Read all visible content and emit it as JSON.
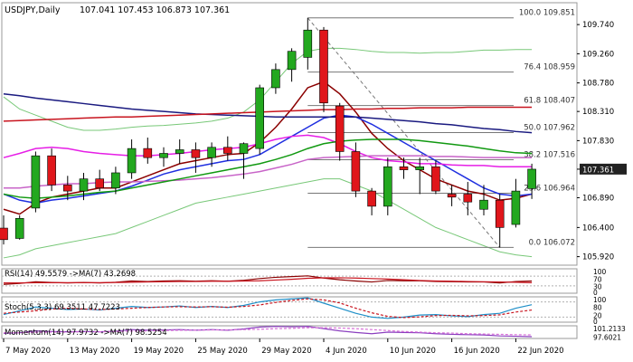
{
  "header": {
    "symbol_text": "USDJPY,Daily",
    "ohlc_text": "107.041 107.453 106.873 107.361"
  },
  "colors": {
    "bull": "#23a81f",
    "bear": "#e0161b",
    "wick": "#000000",
    "dark_red_ma": "#8b0000",
    "blue_ma": "#1f2fe0",
    "navy_ma": "#1a1a80",
    "red_ma": "#c8141e",
    "magenta_ma": "#e61ee6",
    "violet_ma": "#c864c8",
    "green_ma": "#119911",
    "bollinger": "#78c878",
    "fib_line": "#777777",
    "price_box": "#222222"
  },
  "chart_data": [
    {
      "type": "candlestick",
      "title": "USDJPY,Daily",
      "ylim": [
        105.78,
        110.1
      ],
      "y_ticks": [
        105.92,
        106.4,
        106.89,
        107.36,
        107.83,
        108.31,
        108.78,
        109.26,
        109.74
      ],
      "y_tick_labels": [
        "105.920",
        "106.400",
        "106.890",
        "107.361",
        "107.830",
        "108.310",
        "108.780",
        "109.260",
        "109.740"
      ],
      "current_price": 107.361,
      "current_price_label": "107.361",
      "x_tick_labels": [
        {
          "index": 0,
          "label": "7 May 2020"
        },
        {
          "index": 4,
          "label": "13 May 2020"
        },
        {
          "index": 8,
          "label": "19 May 2020"
        },
        {
          "index": 12,
          "label": "25 May 2020"
        },
        {
          "index": 16,
          "label": "29 May 2020"
        },
        {
          "index": 20,
          "label": "4 Jun 2020"
        },
        {
          "index": 24,
          "label": "10 Jun 2020"
        },
        {
          "index": 28,
          "label": "16 Jun 2020"
        },
        {
          "index": 32,
          "label": "22 Jun 2020"
        }
      ],
      "candles": [
        {
          "o": 106.39,
          "h": 106.6,
          "l": 106.12,
          "c": 106.2
        },
        {
          "o": 106.22,
          "h": 106.6,
          "l": 106.2,
          "c": 106.55
        },
        {
          "o": 106.72,
          "h": 107.65,
          "l": 106.65,
          "c": 107.58
        },
        {
          "o": 107.58,
          "h": 107.7,
          "l": 107.0,
          "c": 107.1
        },
        {
          "o": 107.1,
          "h": 107.25,
          "l": 106.85,
          "c": 107.0
        },
        {
          "o": 107.0,
          "h": 107.3,
          "l": 106.85,
          "c": 107.2
        },
        {
          "o": 107.2,
          "h": 107.35,
          "l": 107.0,
          "c": 107.05
        },
        {
          "o": 107.05,
          "h": 107.4,
          "l": 106.95,
          "c": 107.3
        },
        {
          "o": 107.3,
          "h": 107.85,
          "l": 107.2,
          "c": 107.7
        },
        {
          "o": 107.7,
          "h": 107.88,
          "l": 107.45,
          "c": 107.55
        },
        {
          "o": 107.55,
          "h": 107.72,
          "l": 107.4,
          "c": 107.62
        },
        {
          "o": 107.62,
          "h": 107.85,
          "l": 107.45,
          "c": 107.68
        },
        {
          "o": 107.68,
          "h": 107.8,
          "l": 107.3,
          "c": 107.55
        },
        {
          "o": 107.55,
          "h": 107.8,
          "l": 107.4,
          "c": 107.72
        },
        {
          "o": 107.72,
          "h": 107.9,
          "l": 107.5,
          "c": 107.62
        },
        {
          "o": 107.62,
          "h": 107.8,
          "l": 107.2,
          "c": 107.78
        },
        {
          "o": 107.7,
          "h": 108.75,
          "l": 107.6,
          "c": 108.7
        },
        {
          "o": 108.7,
          "h": 109.1,
          "l": 108.6,
          "c": 109.0
        },
        {
          "o": 109.0,
          "h": 109.35,
          "l": 108.8,
          "c": 109.3
        },
        {
          "o": 109.2,
          "h": 109.85,
          "l": 109.0,
          "c": 109.65
        },
        {
          "o": 109.65,
          "h": 109.7,
          "l": 108.3,
          "c": 108.45
        },
        {
          "o": 108.4,
          "h": 108.45,
          "l": 107.5,
          "c": 107.65
        },
        {
          "o": 107.65,
          "h": 107.8,
          "l": 106.9,
          "c": 107.0
        },
        {
          "o": 107.0,
          "h": 107.05,
          "l": 106.6,
          "c": 106.75
        },
        {
          "o": 106.75,
          "h": 107.55,
          "l": 106.6,
          "c": 107.4
        },
        {
          "o": 107.4,
          "h": 107.55,
          "l": 107.2,
          "c": 107.35
        },
        {
          "o": 107.35,
          "h": 107.55,
          "l": 106.95,
          "c": 107.4
        },
        {
          "o": 107.4,
          "h": 107.5,
          "l": 106.95,
          "c": 107.0
        },
        {
          "o": 106.95,
          "h": 107.1,
          "l": 106.75,
          "c": 106.9
        },
        {
          "o": 106.95,
          "h": 107.15,
          "l": 106.6,
          "c": 106.82
        },
        {
          "o": 106.7,
          "h": 107.1,
          "l": 106.6,
          "c": 106.85
        },
        {
          "o": 106.85,
          "h": 106.95,
          "l": 106.07,
          "c": 106.4
        },
        {
          "o": 106.45,
          "h": 107.2,
          "l": 106.4,
          "c": 107.0
        },
        {
          "o": 107.04,
          "h": 107.45,
          "l": 106.87,
          "c": 107.36
        }
      ],
      "fibonacci": [
        {
          "price": 109.851,
          "label": "100.0 109.851"
        },
        {
          "price": 108.959,
          "label": "76.4 108.959"
        },
        {
          "price": 108.407,
          "label": "61.8 108.407"
        },
        {
          "price": 107.962,
          "label": "50.0 107.962"
        },
        {
          "price": 107.516,
          "label": "38.2 107.516"
        },
        {
          "price": 106.964,
          "label": "23.6 106.964"
        },
        {
          "price": 106.072,
          "label": "0.0 106.072"
        }
      ],
      "fib_anchor": {
        "from_index": 19,
        "to_index": 31
      },
      "moving_averages": [
        {
          "key": "dark_red_ma",
          "values": [
            106.7,
            106.62,
            106.8,
            106.9,
            106.95,
            107.0,
            107.05,
            107.05,
            107.15,
            107.25,
            107.35,
            107.45,
            107.5,
            107.55,
            107.6,
            107.62,
            107.8,
            108.05,
            108.35,
            108.7,
            108.8,
            108.6,
            108.3,
            107.95,
            107.7,
            107.5,
            107.35,
            107.2,
            107.1,
            107.0,
            106.95,
            106.85,
            106.88,
            106.95
          ]
        },
        {
          "key": "blue_ma",
          "values": [
            106.95,
            106.85,
            106.8,
            106.85,
            106.88,
            106.92,
            106.96,
            107.0,
            107.08,
            107.18,
            107.28,
            107.35,
            107.4,
            107.45,
            107.5,
            107.52,
            107.6,
            107.75,
            107.9,
            108.05,
            108.2,
            108.25,
            108.22,
            108.1,
            107.95,
            107.8,
            107.65,
            107.5,
            107.35,
            107.2,
            107.05,
            106.95,
            106.92,
            106.95
          ]
        },
        {
          "key": "magenta_ma",
          "values": [
            107.55,
            107.62,
            107.7,
            107.72,
            107.7,
            107.65,
            107.62,
            107.6,
            107.58,
            107.58,
            107.6,
            107.62,
            107.65,
            107.68,
            107.7,
            107.72,
            107.78,
            107.85,
            107.9,
            107.92,
            107.88,
            107.78,
            107.65,
            107.55,
            107.5,
            107.48,
            107.45,
            107.45,
            107.43,
            107.42,
            107.42,
            107.4,
            107.4,
            107.4
          ]
        },
        {
          "key": "violet_ma",
          "values": [
            107.05,
            107.05,
            107.08,
            107.1,
            107.12,
            107.12,
            107.14,
            107.15,
            107.15,
            107.16,
            107.17,
            107.18,
            107.2,
            107.22,
            107.25,
            107.28,
            107.32,
            107.38,
            107.44,
            107.52,
            107.55,
            107.56,
            107.57,
            107.58,
            107.58,
            107.58,
            107.58,
            107.57,
            107.57,
            107.56,
            107.55,
            107.55,
            107.55,
            107.55
          ]
        },
        {
          "key": "green_ma",
          "values": [
            106.95,
            106.9,
            106.88,
            106.9,
            106.92,
            106.95,
            106.98,
            107.0,
            107.05,
            107.1,
            107.15,
            107.2,
            107.25,
            107.3,
            107.35,
            107.4,
            107.45,
            107.52,
            107.6,
            107.7,
            107.78,
            107.82,
            107.84,
            107.85,
            107.85,
            107.85,
            107.83,
            107.8,
            107.77,
            107.74,
            107.7,
            107.66,
            107.63,
            107.62
          ]
        },
        {
          "key": "navy_ma",
          "values": [
            108.6,
            108.57,
            108.53,
            108.5,
            108.47,
            108.44,
            108.41,
            108.38,
            108.35,
            108.33,
            108.31,
            108.29,
            108.27,
            108.26,
            108.25,
            108.24,
            108.23,
            108.22,
            108.22,
            108.22,
            108.22,
            108.22,
            108.22,
            108.2,
            108.18,
            108.16,
            108.14,
            108.11,
            108.09,
            108.06,
            108.03,
            108.01,
            107.98,
            107.96
          ]
        },
        {
          "key": "red_ma",
          "values": [
            108.15,
            108.16,
            108.17,
            108.18,
            108.19,
            108.2,
            108.21,
            108.22,
            108.22,
            108.23,
            108.24,
            108.25,
            108.26,
            108.27,
            108.28,
            108.29,
            108.3,
            108.31,
            108.32,
            108.33,
            108.34,
            108.34,
            108.35,
            108.35,
            108.36,
            108.36,
            108.37,
            108.37,
            108.37,
            108.38,
            108.38,
            108.38,
            108.38,
            108.38
          ]
        }
      ],
      "bollinger_upper": [
        108.55,
        108.35,
        108.25,
        108.15,
        108.05,
        108.0,
        108.0,
        108.02,
        108.05,
        108.07,
        108.08,
        108.1,
        108.12,
        108.15,
        108.2,
        108.3,
        108.5,
        108.8,
        109.1,
        109.3,
        109.35,
        109.35,
        109.33,
        109.3,
        109.28,
        109.28,
        109.27,
        109.28,
        109.28,
        109.3,
        109.32,
        109.32,
        109.33,
        109.33
      ],
      "bollinger_lower": [
        105.9,
        105.95,
        106.05,
        106.1,
        106.15,
        106.2,
        106.25,
        106.3,
        106.4,
        106.5,
        106.6,
        106.7,
        106.8,
        106.85,
        106.9,
        106.95,
        107.0,
        107.05,
        107.1,
        107.15,
        107.2,
        107.2,
        107.1,
        107.0,
        106.85,
        106.7,
        106.55,
        106.4,
        106.3,
        106.2,
        106.1,
        106.0,
        105.95,
        105.92
      ]
    },
    {
      "type": "line",
      "title": "RSI(14) 49.5579 ->MA(7) 43.2698",
      "y_tick_labels": [
        "100",
        "70",
        "30",
        "0"
      ],
      "ylim": [
        0,
        100
      ],
      "series": [
        {
          "key": "rsi",
          "values": [
            36,
            40,
            47,
            44,
            42,
            44,
            42,
            45,
            50,
            48,
            50,
            51,
            49,
            51,
            49,
            53,
            60,
            65,
            68,
            71,
            62,
            55,
            50,
            46,
            52,
            51,
            51,
            48,
            47,
            46,
            46,
            42,
            48,
            50
          ]
        },
        {
          "key": "rsi_ma",
          "values": [
            42,
            42,
            43,
            43,
            43,
            43,
            43,
            44,
            45,
            46,
            47,
            48,
            48,
            49,
            49,
            50,
            51,
            54,
            57,
            61,
            63,
            63,
            62,
            60,
            58,
            55,
            52,
            50,
            49,
            48,
            47,
            46,
            45,
            43
          ]
        }
      ]
    },
    {
      "type": "line",
      "title": "Stoch(5,3,3) 69.3511 47.7223",
      "y_tick_labels": [
        "100",
        "80",
        "20",
        "0"
      ],
      "ylim": [
        0,
        100
      ],
      "series": [
        {
          "key": "stoch_k",
          "values": [
            30,
            45,
            60,
            55,
            50,
            52,
            48,
            55,
            62,
            58,
            60,
            64,
            58,
            62,
            58,
            66,
            80,
            88,
            92,
            96,
            75,
            55,
            35,
            20,
            15,
            20,
            28,
            30,
            25,
            22,
            30,
            35,
            55,
            69
          ]
        },
        {
          "key": "stoch_d",
          "values": [
            35,
            40,
            45,
            52,
            55,
            52,
            50,
            52,
            55,
            58,
            60,
            61,
            60,
            61,
            59,
            62,
            68,
            78,
            86,
            92,
            88,
            76,
            55,
            37,
            23,
            18,
            21,
            26,
            27,
            25,
            26,
            29,
            40,
            48
          ]
        }
      ]
    },
    {
      "type": "line",
      "title": "Momentum(14) 97.9732 ->MA(7) 98.5254",
      "y_tick_labels": [
        "101.2133",
        "97.6021"
      ],
      "ylim": [
        97.4,
        101.4
      ],
      "series": [
        {
          "key": "momentum",
          "values": [
            99.0,
            99.2,
            99.8,
            99.6,
            99.5,
            99.6,
            99.5,
            99.7,
            100.2,
            100.0,
            100.1,
            100.2,
            100.0,
            100.2,
            100.0,
            100.4,
            101.0,
            101.2,
            101.1,
            101.2,
            100.5,
            99.8,
            99.3,
            98.9,
            99.4,
            99.3,
            99.2,
            98.9,
            98.7,
            98.6,
            98.5,
            98.2,
            98.1,
            97.97
          ]
        },
        {
          "key": "momentum_ma",
          "values": [
            99.2,
            99.2,
            99.3,
            99.4,
            99.4,
            99.5,
            99.5,
            99.6,
            99.7,
            99.8,
            99.9,
            100.0,
            100.0,
            100.1,
            100.1,
            100.2,
            100.3,
            100.5,
            100.6,
            100.8,
            100.8,
            100.7,
            100.5,
            100.2,
            99.9,
            99.6,
            99.4,
            99.2,
            99.1,
            98.9,
            98.8,
            98.7,
            98.6,
            98.53
          ]
        }
      ]
    }
  ]
}
